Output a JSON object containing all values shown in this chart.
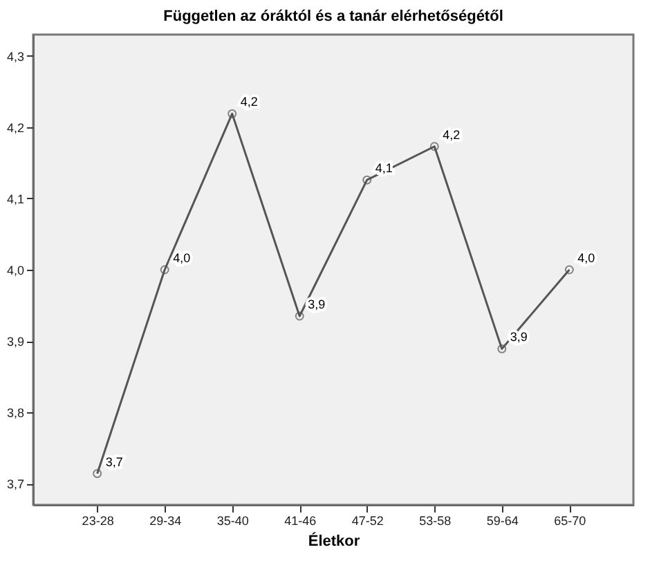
{
  "chart_data": {
    "type": "line",
    "title": "Független az óráktól és a tanár elérhetőségétől",
    "xlabel": "Életkor",
    "categories": [
      "23-28",
      "29-34",
      "35-40",
      "41-46",
      "47-52",
      "53-58",
      "59-64",
      "65-70"
    ],
    "series": [
      {
        "color": "#555555",
        "values": [
          3.714,
          4.0,
          4.219,
          3.935,
          4.126,
          4.173,
          3.889,
          4.0
        ],
        "value_labels": [
          "3,7",
          "4,0",
          "4,2",
          "3,9",
          "4,1",
          "4,2",
          "3,9",
          "4,0"
        ]
      }
    ],
    "ylim": [
      3.67,
      4.33
    ],
    "yticks": [
      {
        "value": 3.7,
        "label": "3,7"
      },
      {
        "value": 3.8,
        "label": "3,8"
      },
      {
        "value": 3.9,
        "label": "3,9"
      },
      {
        "value": 4.0,
        "label": "4,0"
      },
      {
        "value": 4.1,
        "label": "4,1"
      },
      {
        "value": 4.2,
        "label": "4,2"
      },
      {
        "value": 4.3,
        "label": "4,3"
      }
    ],
    "grid": false,
    "legend": false,
    "marker": "circle",
    "line_style": "solid"
  }
}
